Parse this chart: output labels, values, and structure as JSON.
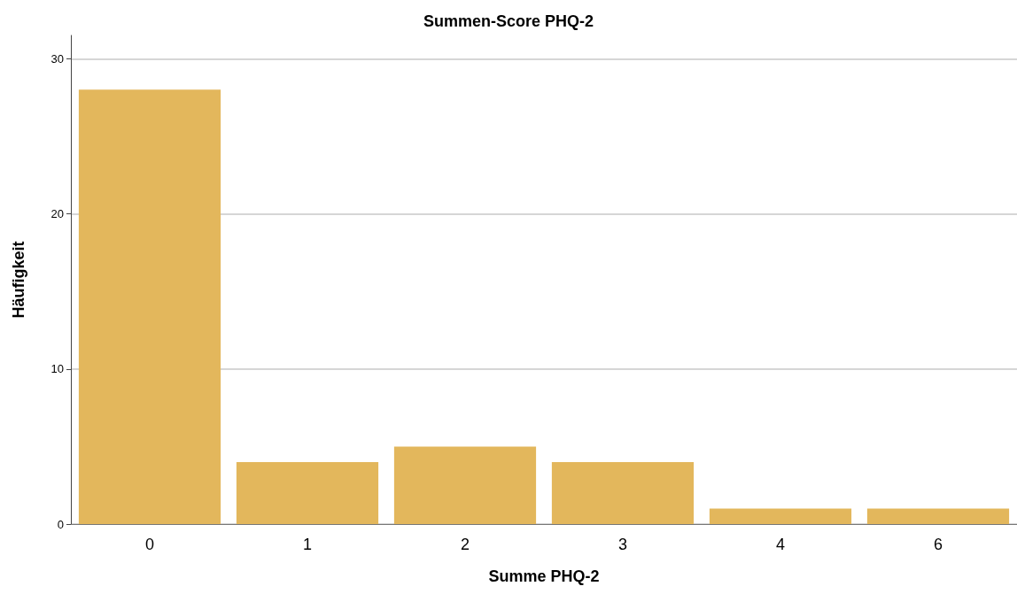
{
  "chart_data": {
    "type": "bar",
    "title": "Summen-Score PHQ-2",
    "xlabel": "Summe PHQ-2",
    "ylabel": "Häufigkeit",
    "categories": [
      "0",
      "1",
      "2",
      "3",
      "4",
      "6"
    ],
    "values": [
      28,
      4,
      5,
      4,
      1,
      1
    ],
    "color": "#e3b75c",
    "ylim": [
      0,
      31.5
    ],
    "yticks": [
      0,
      10,
      20,
      30
    ],
    "grid": "y"
  }
}
